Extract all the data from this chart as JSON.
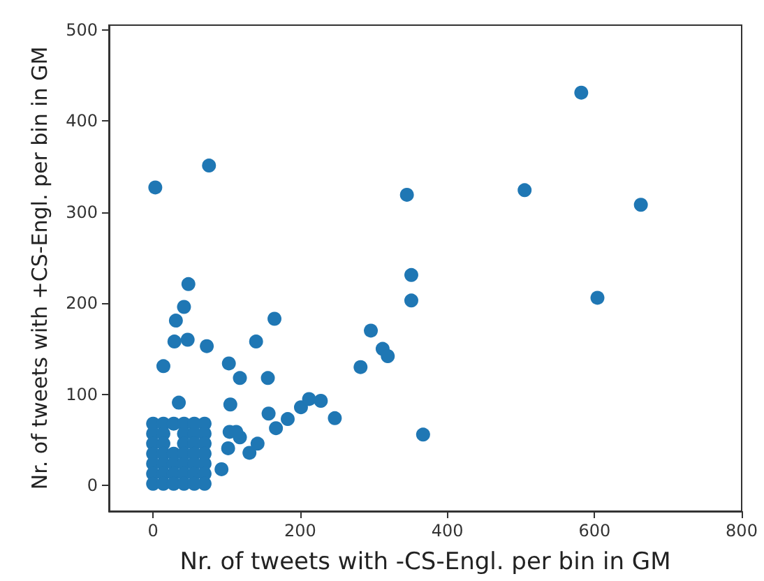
{
  "chart_data": {
    "type": "scatter",
    "xlabel": "Nr. of tweets with -CS-Engl. per bin in GM",
    "ylabel": "Nr. of tweets with +CS-Engl. per bin in GM",
    "xlim": [
      -60,
      800
    ],
    "ylim": [
      -28,
      505
    ],
    "xticks": [
      0,
      200,
      400,
      600,
      800
    ],
    "yticks": [
      0,
      100,
      200,
      300,
      400,
      500
    ],
    "grid": false,
    "marker": "circle",
    "series": [
      {
        "color": "#1f77b4",
        "x": [
          582,
          76,
          3,
          345,
          505,
          663,
          48,
          351,
          351,
          604,
          42,
          31,
          165,
          29,
          47,
          73,
          140,
          296,
          312,
          319,
          14,
          103,
          282,
          118,
          156,
          35,
          105,
          157,
          201,
          212,
          228,
          183,
          247,
          167,
          367,
          142,
          131,
          102,
          118,
          104,
          113,
          93,
          0,
          14,
          28,
          42,
          56,
          70,
          0,
          14,
          42,
          56,
          70,
          0,
          14,
          42,
          56,
          70,
          0,
          14,
          28,
          42,
          56,
          70,
          0,
          14,
          28,
          42,
          56,
          70,
          0,
          14,
          28,
          42,
          56,
          70,
          0,
          14,
          28,
          42,
          56,
          70
        ],
        "values": [
          431,
          351,
          327,
          319,
          324,
          308,
          221,
          231,
          203,
          206,
          196,
          181,
          183,
          158,
          160,
          153,
          158,
          170,
          150,
          142,
          131,
          134,
          130,
          118,
          118,
          91,
          89,
          79,
          86,
          95,
          93,
          73,
          74,
          63,
          56,
          46,
          36,
          41,
          53,
          59,
          59,
          18,
          68,
          68,
          68,
          68,
          68,
          68,
          57,
          57,
          57,
          57,
          57,
          46,
          46,
          46,
          46,
          46,
          35,
          35,
          35,
          35,
          35,
          35,
          24,
          24,
          24,
          24,
          24,
          24,
          13,
          13,
          13,
          13,
          13,
          13,
          2,
          2,
          2,
          2,
          2,
          2
        ]
      }
    ]
  }
}
